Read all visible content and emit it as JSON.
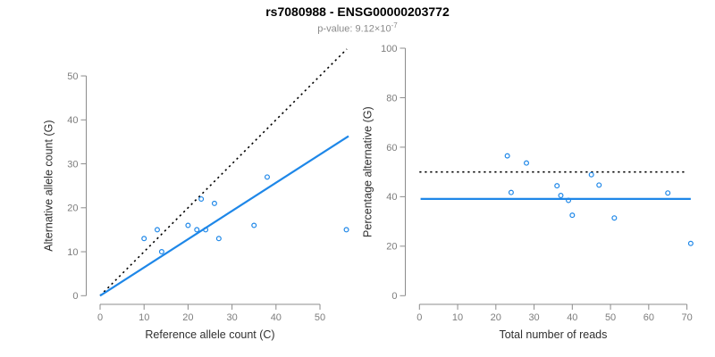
{
  "header": {
    "title": "rs7080988 - ENSG00000203772",
    "subtitle_prefix": "p-value: 9.12×10",
    "subtitle_exponent": "-7"
  },
  "colors": {
    "accent_blue": "#1e87e8",
    "point_blue": "#1e87e8",
    "dotted_black": "#000000",
    "axis_gray": "#8c8c8c",
    "tick_label_gray": "#7d7d7d",
    "axis_title_color": "#303030",
    "subtitle_gray": "#8a8a8a"
  },
  "chart_data": [
    {
      "type": "scatter",
      "name": "allele-counts-scatter",
      "xlabel": "Reference allele count (C)",
      "ylabel": "Alternative allele count (G)",
      "xlim": [
        0,
        56.5
      ],
      "ylim": [
        0,
        56.1
      ],
      "xticks": [
        0,
        10,
        20,
        30,
        40,
        50
      ],
      "yticks": [
        0,
        10,
        20,
        30,
        40,
        50
      ],
      "grid": false,
      "points": [
        [
          10,
          13
        ],
        [
          13,
          15
        ],
        [
          14,
          10
        ],
        [
          20,
          16
        ],
        [
          22,
          15
        ],
        [
          23,
          22
        ],
        [
          24,
          15
        ],
        [
          26,
          21
        ],
        [
          27,
          13
        ],
        [
          35,
          16
        ],
        [
          38,
          27
        ],
        [
          56,
          15
        ]
      ],
      "lines": [
        {
          "name": "identity-line",
          "style": "dotted",
          "color": "#000000",
          "x1": 0,
          "y1": 0,
          "x2": 56.1,
          "y2": 56.1
        },
        {
          "name": "regression-line",
          "style": "solid",
          "color": "#1e87e8",
          "x1": 0,
          "y1": 0,
          "x2": 56.5,
          "y2": 36.3
        }
      ]
    },
    {
      "type": "scatter",
      "name": "percentage-scatter",
      "xlabel": "Total number of reads",
      "ylabel": "Percentage alternative (G)",
      "xlim": [
        0,
        71.5
      ],
      "ylim": [
        0,
        100
      ],
      "xticks": [
        0,
        10,
        20,
        30,
        40,
        50,
        60,
        70
      ],
      "yticks": [
        0,
        20,
        40,
        60,
        80,
        100
      ],
      "grid": false,
      "points": [
        [
          23,
          56.5
        ],
        [
          28,
          53.6
        ],
        [
          24,
          41.7
        ],
        [
          36,
          44.4
        ],
        [
          37,
          40.5
        ],
        [
          45,
          48.9
        ],
        [
          39,
          38.5
        ],
        [
          47,
          44.7
        ],
        [
          40,
          32.5
        ],
        [
          51,
          31.4
        ],
        [
          65,
          41.5
        ],
        [
          71,
          21.1
        ]
      ],
      "lines": [
        {
          "name": "expected-50-line",
          "style": "dotted",
          "color": "#000000",
          "x1": 0,
          "y1": 50,
          "x2": 70,
          "y2": 50
        },
        {
          "name": "mean-percentage-line",
          "style": "solid",
          "color": "#1e87e8",
          "x1": 0.3,
          "y1": 39.1,
          "x2": 71,
          "y2": 39.1
        }
      ]
    }
  ]
}
